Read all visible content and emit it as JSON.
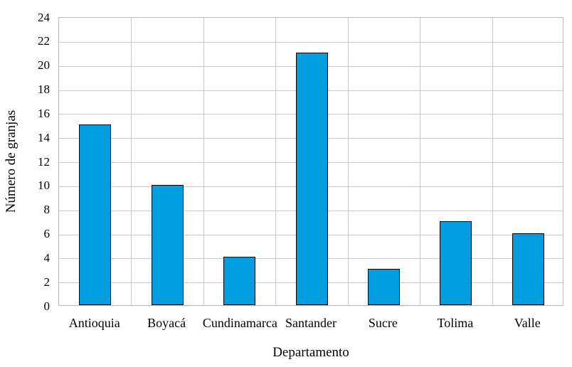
{
  "chart_data": {
    "type": "bar",
    "categories": [
      "Antioquia",
      "Boyacá",
      "Cundinamarca",
      "Santander",
      "Sucre",
      "Tolima",
      "Valle"
    ],
    "values": [
      15,
      10,
      4,
      21,
      3,
      7,
      6
    ],
    "title": "",
    "xlabel": "Departamento",
    "ylabel": "Número de granjas",
    "ylim": [
      0,
      24
    ],
    "ytick_step": 2,
    "grid": true,
    "legend": "none",
    "bar_color": "#009EE0",
    "bar_border_color": "#000000",
    "grid_color": "#c9c9c9",
    "plot_border_color": "#b9b9b9",
    "background_color": "#ffffff",
    "text_color": "#000000"
  }
}
